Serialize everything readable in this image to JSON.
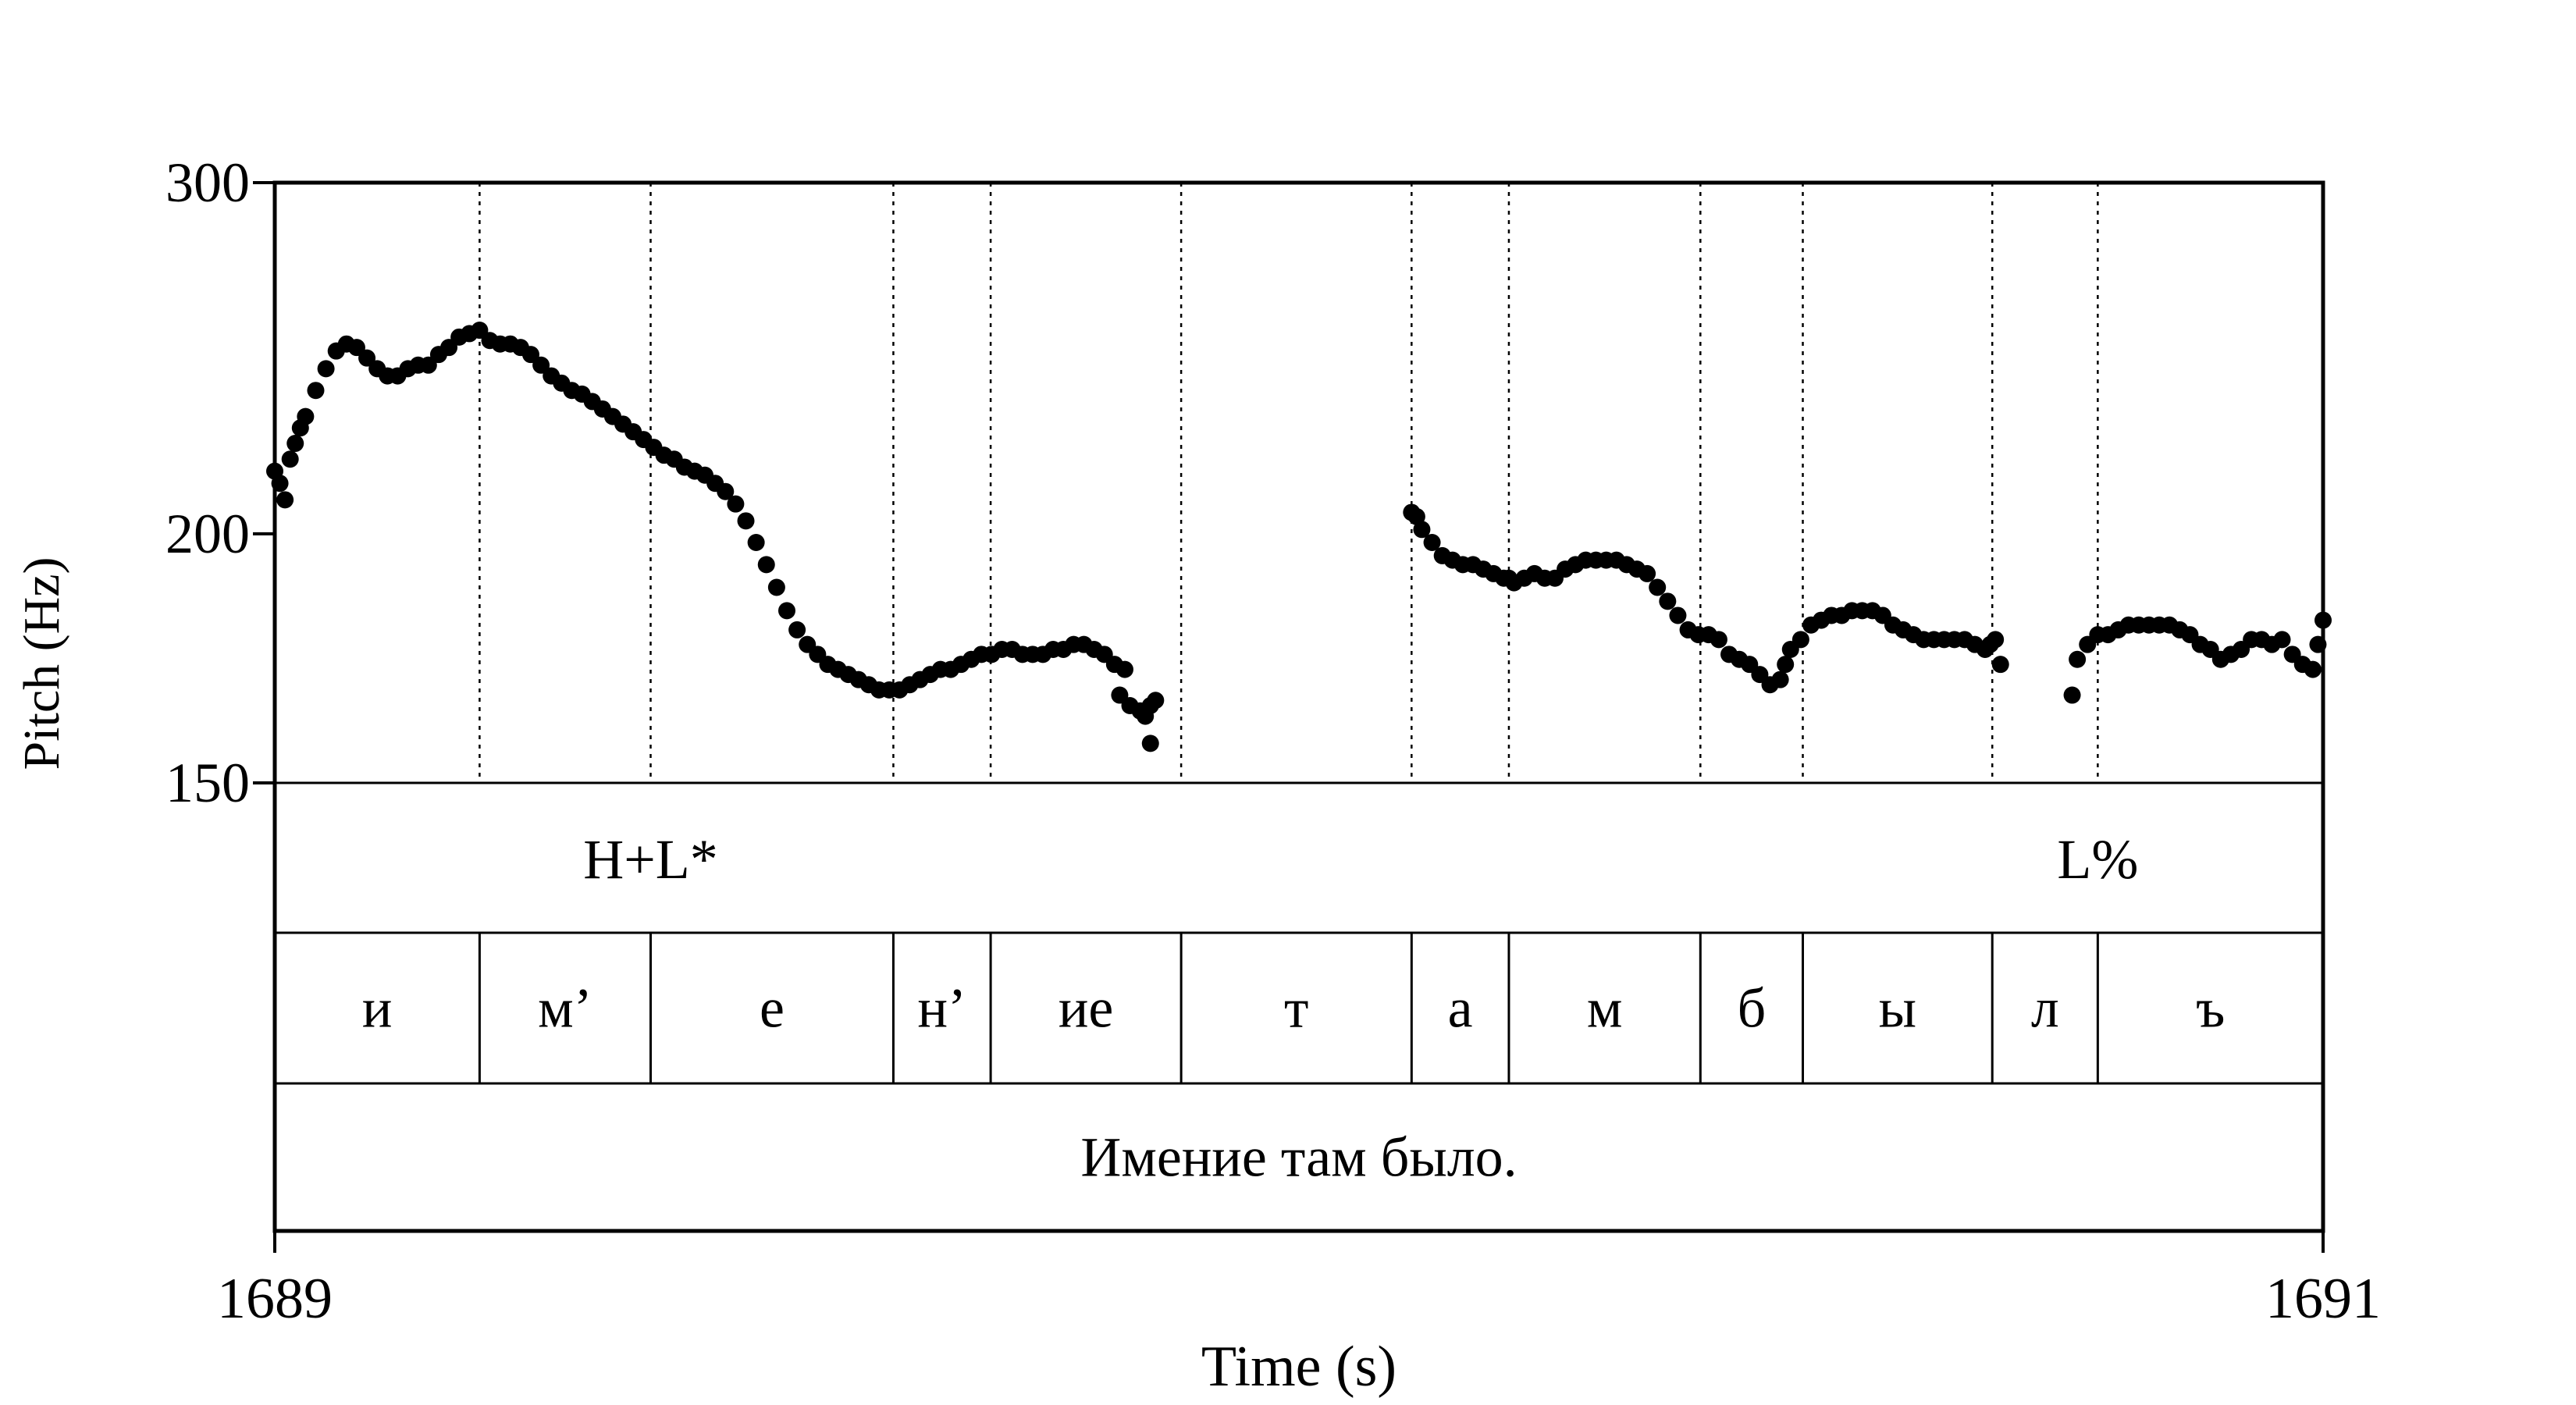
{
  "chart_data": {
    "type": "scatter",
    "title": "",
    "xlabel": "Time (s)",
    "ylabel": "Pitch (Hz)",
    "x_range": [
      1689,
      1691
    ],
    "y_range": [
      150,
      300
    ],
    "y_scale": "log",
    "x_ticks": [
      "1689",
      "1691"
    ],
    "y_ticks": [
      "300",
      "200",
      "150"
    ],
    "grid": false,
    "segment_boundaries": [
      1689.2,
      1689.367,
      1689.604,
      1689.699,
      1689.885,
      1690.11,
      1690.205,
      1690.392,
      1690.492,
      1690.677,
      1690.78
    ],
    "tiers": {
      "tones": [
        {
          "text": "H+L*",
          "time": 1689.367
        },
        {
          "text": "L%",
          "time": 1690.78
        }
      ],
      "segments": [
        "и",
        "м’",
        "е",
        "н’",
        "ие",
        "т",
        "а",
        "м",
        "б",
        "ы",
        "л",
        "ъ"
      ],
      "sentence": "Имение там было."
    },
    "series": [
      {
        "points": [
          [
            1689.0,
            215
          ],
          [
            1689.005,
            212
          ],
          [
            1689.01,
            208
          ],
          [
            1689.015,
            218
          ],
          [
            1689.02,
            222
          ],
          [
            1689.025,
            226
          ],
          [
            1689.03,
            229
          ],
          [
            1689.04,
            236
          ],
          [
            1689.05,
            242
          ],
          [
            1689.06,
            247
          ],
          [
            1689.07,
            249
          ],
          [
            1689.08,
            248
          ],
          [
            1689.09,
            245
          ],
          [
            1689.1,
            242
          ],
          [
            1689.11,
            240
          ],
          [
            1689.12,
            240
          ],
          [
            1689.13,
            242
          ],
          [
            1689.14,
            243
          ],
          [
            1689.15,
            243
          ],
          [
            1689.16,
            246
          ],
          [
            1689.17,
            248
          ],
          [
            1689.18,
            251
          ],
          [
            1689.19,
            252
          ],
          [
            1689.2,
            253
          ],
          [
            1689.21,
            250
          ],
          [
            1689.22,
            249
          ],
          [
            1689.23,
            249
          ],
          [
            1689.24,
            248
          ],
          [
            1689.25,
            246
          ],
          [
            1689.26,
            243
          ],
          [
            1689.27,
            240
          ],
          [
            1689.28,
            238
          ],
          [
            1689.29,
            236
          ],
          [
            1689.3,
            235
          ],
          [
            1689.31,
            233
          ],
          [
            1689.32,
            231
          ],
          [
            1689.33,
            229
          ],
          [
            1689.34,
            227
          ],
          [
            1689.35,
            225
          ],
          [
            1689.36,
            223
          ],
          [
            1689.37,
            221
          ],
          [
            1689.38,
            219
          ],
          [
            1689.39,
            218
          ],
          [
            1689.4,
            216
          ],
          [
            1689.41,
            215
          ],
          [
            1689.42,
            214
          ],
          [
            1689.43,
            212
          ],
          [
            1689.44,
            210
          ],
          [
            1689.45,
            207
          ],
          [
            1689.46,
            203
          ],
          [
            1689.47,
            198
          ],
          [
            1689.48,
            193
          ],
          [
            1689.49,
            188
          ],
          [
            1689.5,
            183
          ],
          [
            1689.51,
            179
          ],
          [
            1689.52,
            176
          ],
          [
            1689.53,
            174
          ],
          [
            1689.54,
            172
          ],
          [
            1689.55,
            171
          ],
          [
            1689.56,
            170
          ],
          [
            1689.57,
            169
          ],
          [
            1689.58,
            168
          ],
          [
            1689.59,
            167
          ],
          [
            1689.6,
            167
          ],
          [
            1689.61,
            167
          ],
          [
            1689.62,
            168
          ],
          [
            1689.63,
            169
          ],
          [
            1689.64,
            170
          ],
          [
            1689.65,
            171
          ],
          [
            1689.66,
            171
          ],
          [
            1689.67,
            172
          ],
          [
            1689.68,
            173
          ],
          [
            1689.69,
            174
          ],
          [
            1689.7,
            174
          ],
          [
            1689.71,
            175
          ],
          [
            1689.72,
            175
          ],
          [
            1689.73,
            174
          ],
          [
            1689.74,
            174
          ],
          [
            1689.75,
            174
          ],
          [
            1689.76,
            175
          ],
          [
            1689.77,
            175
          ],
          [
            1689.78,
            176
          ],
          [
            1689.79,
            176
          ],
          [
            1689.8,
            175
          ],
          [
            1689.81,
            174
          ],
          [
            1689.82,
            172
          ],
          [
            1689.83,
            171
          ],
          [
            1689.825,
            166
          ],
          [
            1689.835,
            164
          ],
          [
            1689.845,
            163
          ],
          [
            1689.85,
            162
          ],
          [
            1689.855,
            164
          ],
          [
            1689.86,
            165
          ],
          [
            1689.855,
            157
          ],
          [
            1690.11,
            205
          ],
          [
            1690.115,
            204
          ],
          [
            1690.12,
            201
          ],
          [
            1690.13,
            198
          ],
          [
            1690.14,
            195
          ],
          [
            1690.15,
            194
          ],
          [
            1690.16,
            193
          ],
          [
            1690.17,
            193
          ],
          [
            1690.18,
            192
          ],
          [
            1690.19,
            191
          ],
          [
            1690.2,
            190
          ],
          [
            1690.205,
            190
          ],
          [
            1690.21,
            189
          ],
          [
            1690.22,
            190
          ],
          [
            1690.23,
            191
          ],
          [
            1690.24,
            190
          ],
          [
            1690.25,
            190
          ],
          [
            1690.26,
            192
          ],
          [
            1690.27,
            193
          ],
          [
            1690.28,
            194
          ],
          [
            1690.29,
            194
          ],
          [
            1690.3,
            194
          ],
          [
            1690.31,
            194
          ],
          [
            1690.32,
            193
          ],
          [
            1690.33,
            192
          ],
          [
            1690.34,
            191
          ],
          [
            1690.35,
            188
          ],
          [
            1690.36,
            185
          ],
          [
            1690.37,
            182
          ],
          [
            1690.38,
            179
          ],
          [
            1690.39,
            178
          ],
          [
            1690.4,
            178
          ],
          [
            1690.41,
            177
          ],
          [
            1690.42,
            174
          ],
          [
            1690.43,
            173
          ],
          [
            1690.44,
            172
          ],
          [
            1690.45,
            170
          ],
          [
            1690.46,
            168
          ],
          [
            1690.47,
            169
          ],
          [
            1690.475,
            172
          ],
          [
            1690.48,
            175
          ],
          [
            1690.49,
            177
          ],
          [
            1690.5,
            180
          ],
          [
            1690.51,
            181
          ],
          [
            1690.52,
            182
          ],
          [
            1690.53,
            182
          ],
          [
            1690.54,
            183
          ],
          [
            1690.55,
            183
          ],
          [
            1690.56,
            183
          ],
          [
            1690.57,
            182
          ],
          [
            1690.58,
            180
          ],
          [
            1690.59,
            179
          ],
          [
            1690.6,
            178
          ],
          [
            1690.61,
            177
          ],
          [
            1690.62,
            177
          ],
          [
            1690.63,
            177
          ],
          [
            1690.64,
            177
          ],
          [
            1690.65,
            177
          ],
          [
            1690.66,
            176
          ],
          [
            1690.67,
            175
          ],
          [
            1690.675,
            176
          ],
          [
            1690.68,
            177
          ],
          [
            1690.685,
            172
          ],
          [
            1690.755,
            166
          ],
          [
            1690.76,
            173
          ],
          [
            1690.77,
            176
          ],
          [
            1690.78,
            178
          ],
          [
            1690.79,
            178
          ],
          [
            1690.8,
            179
          ],
          [
            1690.81,
            180
          ],
          [
            1690.82,
            180
          ],
          [
            1690.83,
            180
          ],
          [
            1690.84,
            180
          ],
          [
            1690.85,
            180
          ],
          [
            1690.86,
            179
          ],
          [
            1690.87,
            178
          ],
          [
            1690.88,
            176
          ],
          [
            1690.89,
            175
          ],
          [
            1690.9,
            173
          ],
          [
            1690.91,
            174
          ],
          [
            1690.92,
            175
          ],
          [
            1690.93,
            177
          ],
          [
            1690.94,
            177
          ],
          [
            1690.95,
            176
          ],
          [
            1690.96,
            177
          ],
          [
            1690.97,
            174
          ],
          [
            1690.98,
            172
          ],
          [
            1690.99,
            171
          ],
          [
            1690.995,
            176
          ],
          [
            1691.0,
            181
          ]
        ]
      }
    ]
  }
}
